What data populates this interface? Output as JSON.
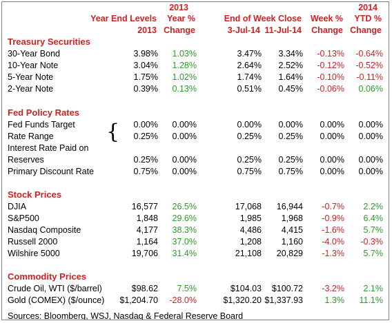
{
  "headers": {
    "col1_line1": "Year End Levels",
    "col1_line2": "2013",
    "col2_line0": "2013",
    "col2_line1": "Year %",
    "col2_line2": "Change",
    "col34_line1": "End of Week Close",
    "col3_line2": "3-Jul-14",
    "col4_line2": "11-Jul-14",
    "col5_line1": "Week %",
    "col5_line2": "Change",
    "col6_line0": "2014",
    "col6_line1": "YTD %",
    "col6_line2": "Change"
  },
  "sections": [
    {
      "title": "Treasury Securities",
      "rows": [
        {
          "label": "30-Year Bond",
          "v1": "3.98%",
          "v2": "1.03%",
          "v3": "3.47%",
          "v4": "3.34%",
          "v5": "-0.13%",
          "v6": "-0.64%"
        },
        {
          "label": "10-Year Note",
          "v1": "3.04%",
          "v2": "1.28%",
          "v3": "2.64%",
          "v4": "2.52%",
          "v5": "-0.12%",
          "v6": "-0.52%"
        },
        {
          "label": "5-Year Note",
          "v1": "1.75%",
          "v2": "1.02%",
          "v3": "1.74%",
          "v4": "1.64%",
          "v5": "-0.10%",
          "v6": "-0.11%"
        },
        {
          "label": "2-Year Note",
          "v1": "0.39%",
          "v2": "0.13%",
          "v3": "0.51%",
          "v4": "0.45%",
          "v5": "-0.06%",
          "v6": "0.06%"
        }
      ]
    },
    {
      "title": "Fed Policy Rates",
      "rows": [
        {
          "label": "Fed Funds Target",
          "v1": "0.00%",
          "v2": "0.00%",
          "v3": "0.00%",
          "v4": "0.00%",
          "v5": "0.00%",
          "v6": "0.00%"
        },
        {
          "label": "Rate Range",
          "v1": "0.25%",
          "v2": "0.00%",
          "v3": "0.25%",
          "v4": "0.25%",
          "v5": "0.00%",
          "v6": "0.00%"
        },
        {
          "label": "Interest Rate Paid on",
          "v1": "",
          "v2": "",
          "v3": "",
          "v4": "",
          "v5": "",
          "v6": ""
        },
        {
          "label": "Reserves",
          "v1": "0.25%",
          "v2": "0.00%",
          "v3": "0.25%",
          "v4": "0.25%",
          "v5": "0.00%",
          "v6": "0.00%"
        },
        {
          "label": "Primary Discount Rate",
          "v1": "0.75%",
          "v2": "0.00%",
          "v3": "0.75%",
          "v4": "0.75%",
          "v5": "0.00%",
          "v6": "0.00%"
        }
      ]
    },
    {
      "title": "Stock Prices",
      "rows": [
        {
          "label": "DJIA",
          "v1": "16,577",
          "v2": "26.5%",
          "v3": "17,068",
          "v4": "16,944",
          "v5": "-0.7%",
          "v6": "2.2%"
        },
        {
          "label": "S&P500",
          "v1": "1,848",
          "v2": "29.6%",
          "v3": "1,985",
          "v4": "1,968",
          "v5": "-0.9%",
          "v6": "6.4%"
        },
        {
          "label": "Nasdaq Composite",
          "v1": "4,177",
          "v2": "38.3%",
          "v3": "4,486",
          "v4": "4,415",
          "v5": "-1.6%",
          "v6": "5.7%"
        },
        {
          "label": "Russell 2000",
          "v1": "1,164",
          "v2": "37.0%",
          "v3": "1,208",
          "v4": "1,160",
          "v5": "-4.0%",
          "v6": "-0.3%"
        },
        {
          "label": "Wilshire 5000",
          "v1": "19,706",
          "v2": "31.4%",
          "v3": "21,108",
          "v4": "20,829",
          "v5": "-1.3%",
          "v6": "5.7%"
        }
      ]
    },
    {
      "title": "Commodity Prices",
      "rows": [
        {
          "label": "Crude Oil, WTI ($/barrel)",
          "v1": "$98.62",
          "v2": "7.5%",
          "v3": "$104.03",
          "v4": "$100.72",
          "v5": "-3.2%",
          "v6": "2.1%"
        },
        {
          "label": "Gold (COMEX) ($/ounce)",
          "v1": "$1,204.70",
          "v2": "-28.0%",
          "v3": "$1,320.20",
          "v4": "$1,337.93",
          "v5": "1.3%",
          "v6": "11.1%"
        }
      ]
    }
  ],
  "brace": "{",
  "source": "Sources: Bloomberg, WSJ, Nasdaq & Federal Reserve Board",
  "colors": {
    "header": "#d21f1f",
    "negative": "#d21f1f",
    "positive": "#2a9a2a"
  }
}
